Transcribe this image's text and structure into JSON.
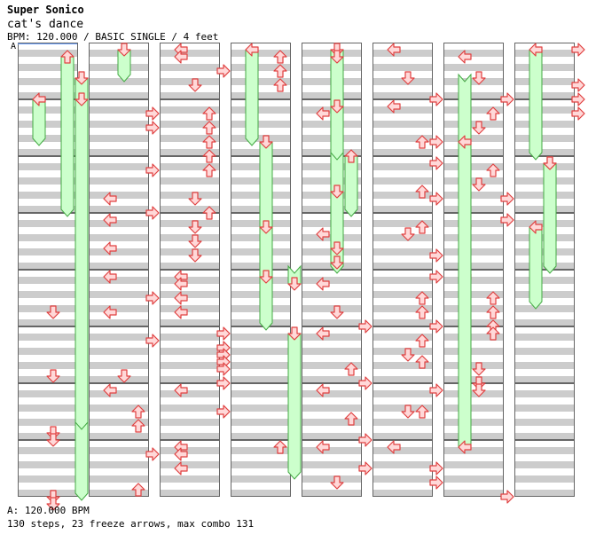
{
  "header": {
    "artist": "Super Sonico",
    "song": "cat's dance",
    "info": "BPM: 120.000 / BASIC SINGLE / 4 feet"
  },
  "footer": {
    "bpm_line": "A: 120.000 BPM",
    "stats": "130 steps, 23 freeze arrows, max combo 131"
  },
  "bpm_marker": "A",
  "colors": {
    "arrow_fill": "#ffd8d8",
    "arrow_stroke": "#e04040",
    "freeze_fill": "#ccffcc",
    "freeze_stroke": "#44aa44",
    "stripe": "#cccccc",
    "border": "#666666"
  },
  "chart_columns": [
    {
      "freezes": [
        [
          0,
          1,
          2,
          3,
          6,
          3,
          7,
          8
        ],
        [
          0,
          4,
          7,
          3,
          3,
          2,
          9,
          14
        ],
        [
          0,
          7,
          1,
          1,
          8,
          1,
          8,
          12
        ],
        [
          0,
          7,
          6,
          1,
          7,
          7,
          8,
          8
        ]
      ],
      "arrows": [
        [
          4,
          5,
          1
        ],
        [
          5,
          6,
          1
        ],
        [
          6,
          6,
          1
        ],
        [
          6,
          7,
          1
        ],
        [
          7,
          7,
          1
        ],
        [
          7,
          8,
          1
        ]
      ]
    },
    {
      "freezes": [
        [
          0,
          0,
          0,
          0,
          1,
          4,
          0,
          0
        ]
      ],
      "arrows": [
        [
          1,
          1,
          3
        ],
        [
          1,
          3,
          3
        ],
        [
          2,
          1,
          3
        ],
        [
          2,
          5,
          0
        ],
        [
          2,
          7,
          3
        ],
        [
          3,
          0,
          0
        ],
        [
          3,
          4,
          0
        ],
        [
          4,
          0,
          0
        ],
        [
          4,
          3,
          3
        ],
        [
          4,
          5,
          0
        ],
        [
          5,
          1,
          3
        ],
        [
          5,
          6,
          1
        ],
        [
          6,
          0,
          0
        ],
        [
          6,
          3,
          2
        ],
        [
          6,
          5,
          2
        ],
        [
          7,
          1,
          3
        ],
        [
          7,
          6,
          2
        ]
      ]
    },
    {
      "arrows": [
        [
          0,
          0,
          0
        ],
        [
          0,
          1,
          0
        ],
        [
          0,
          3,
          3
        ],
        [
          0,
          5,
          1
        ],
        [
          1,
          1,
          2
        ],
        [
          1,
          3,
          2
        ],
        [
          1,
          5,
          2
        ],
        [
          1,
          7,
          2
        ],
        [
          2,
          1,
          2
        ],
        [
          2,
          5,
          1
        ],
        [
          2,
          7,
          2
        ],
        [
          3,
          1,
          1
        ],
        [
          3,
          3,
          1
        ],
        [
          3,
          5,
          1
        ],
        [
          4,
          0,
          0
        ],
        [
          4,
          1,
          0
        ],
        [
          4,
          3,
          0
        ],
        [
          4,
          5,
          0
        ],
        [
          5,
          0,
          3
        ],
        [
          5,
          2,
          3
        ],
        [
          5,
          3,
          3
        ],
        [
          5,
          4,
          3
        ],
        [
          5,
          5,
          3
        ],
        [
          5,
          7,
          3
        ],
        [
          6,
          0,
          0
        ],
        [
          6,
          3,
          3
        ],
        [
          7,
          0,
          0
        ],
        [
          7,
          1,
          0
        ],
        [
          7,
          3,
          0
        ]
      ]
    },
    {
      "freezes": [
        [
          0,
          0,
          1,
          1,
          0,
          2,
          0,
          0
        ],
        [
          1,
          5,
          3,
          3,
          1,
          7,
          3,
          3
        ],
        [
          3,
          1,
          4,
          3,
          1,
          4,
          0,
          0
        ],
        [
          4,
          1,
          3,
          3,
          3,
          7,
          3,
          3
        ],
        [
          5,
          0,
          7,
          0,
          7,
          0,
          0,
          0
        ]
      ],
      "arrows": [
        [
          0,
          1,
          2
        ],
        [
          0,
          3,
          2
        ],
        [
          0,
          5,
          2
        ],
        [
          7,
          0,
          2
        ],
        [
          4,
          0,
          1
        ]
      ]
    },
    {
      "freezes": [
        [
          0,
          0,
          2,
          3,
          1,
          5,
          0,
          0
        ],
        [
          1,
          0,
          1,
          3,
          1,
          4,
          0,
          0
        ],
        [
          2,
          4,
          3,
          3,
          1,
          7,
          3,
          3
        ],
        [
          1,
          7,
          2,
          3,
          2,
          3,
          0,
          0
        ]
      ],
      "arrows": [
        [
          0,
          1,
          1
        ],
        [
          1,
          1,
          0
        ],
        [
          3,
          4,
          1
        ],
        [
          3,
          2,
          0
        ],
        [
          3,
          6,
          1
        ],
        [
          4,
          1,
          0
        ],
        [
          4,
          5,
          1
        ],
        [
          4,
          7,
          3
        ],
        [
          5,
          0,
          0
        ],
        [
          5,
          5,
          2
        ],
        [
          5,
          7,
          3
        ],
        [
          6,
          0,
          0
        ],
        [
          6,
          7,
          3
        ],
        [
          6,
          4,
          2
        ],
        [
          7,
          0,
          0
        ],
        [
          7,
          3,
          3
        ],
        [
          7,
          5,
          1
        ]
      ]
    },
    {
      "arrows": [
        [
          0,
          0,
          0
        ],
        [
          0,
          7,
          3
        ],
        [
          0,
          4,
          1
        ],
        [
          1,
          0,
          0
        ],
        [
          1,
          5,
          3
        ],
        [
          1,
          5,
          2
        ],
        [
          2,
          0,
          3
        ],
        [
          2,
          4,
          2
        ],
        [
          2,
          5,
          3
        ],
        [
          3,
          2,
          1
        ],
        [
          3,
          1,
          2
        ],
        [
          3,
          5,
          3
        ],
        [
          4,
          0,
          3
        ],
        [
          4,
          3,
          2
        ],
        [
          4,
          5,
          2
        ],
        [
          4,
          7,
          3
        ],
        [
          5,
          1,
          2
        ],
        [
          5,
          3,
          1
        ],
        [
          5,
          4,
          2
        ],
        [
          6,
          0,
          3
        ],
        [
          6,
          3,
          1
        ],
        [
          6,
          3,
          2
        ],
        [
          7,
          0,
          0
        ],
        [
          7,
          3,
          3
        ],
        [
          7,
          5,
          3
        ]
      ]
    },
    {
      "freezes": [
        [
          3,
          1,
          4,
          2,
          0,
          0,
          0,
          0
        ],
        [
          4,
          0,
          4,
          2,
          0,
          0,
          0,
          0
        ],
        [
          7,
          0,
          0,
          0,
          0,
          0,
          0,
          0
        ]
      ],
      "arrows": [
        [
          0,
          1,
          0
        ],
        [
          0,
          4,
          1
        ],
        [
          0,
          7,
          3
        ],
        [
          1,
          1,
          2
        ],
        [
          1,
          3,
          1
        ],
        [
          1,
          5,
          0
        ],
        [
          2,
          1,
          2
        ],
        [
          2,
          3,
          1
        ],
        [
          2,
          5,
          3
        ],
        [
          3,
          0,
          3
        ],
        [
          4,
          3,
          2
        ],
        [
          4,
          5,
          2
        ],
        [
          4,
          7,
          2
        ],
        [
          5,
          0,
          2
        ],
        [
          5,
          5,
          1
        ],
        [
          5,
          7,
          1
        ],
        [
          6,
          0,
          1
        ],
        [
          7,
          7,
          3
        ]
      ]
    },
    {
      "freezes": [
        [
          0,
          0,
          1,
          3,
          0,
          3,
          1,
          0
        ],
        [
          2,
          0,
          3,
          3,
          1,
          2,
          0,
          0
        ],
        [
          3,
          1,
          4,
          0,
          0,
          0,
          0,
          0
        ]
      ],
      "arrows": [
        [
          0,
          0,
          3
        ],
        [
          0,
          5,
          3
        ],
        [
          0,
          7,
          3
        ],
        [
          1,
          1,
          3
        ],
        [
          2,
          0,
          1
        ]
      ]
    }
  ]
}
